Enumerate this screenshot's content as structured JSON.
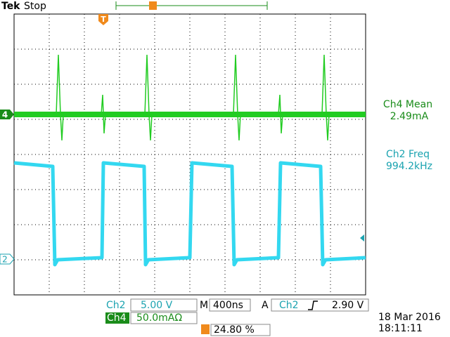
{
  "header": {
    "brand": "Tek",
    "state": "Stop"
  },
  "markers": {
    "ch4": "4",
    "ch2": "2",
    "trigger": "T"
  },
  "measurements": [
    {
      "label": "Ch4 Mean",
      "value": "2.49mA"
    },
    {
      "label": "Ch2 Freq",
      "value": "994.2kHz"
    }
  ],
  "settings": {
    "ch2_label": "Ch2",
    "ch2_scale": "5.00 V",
    "ch4_label": "Ch4",
    "ch4_scale": "50.0mAΩ",
    "timebase_label": "M",
    "timebase": "400ns",
    "trigger_mode": "A",
    "trigger_source": "Ch2",
    "trigger_level": "2.90 V",
    "trigger_position": "24.80 %"
  },
  "datetime": {
    "date": "18 Mar 2016",
    "time": "18:11:11"
  }
}
